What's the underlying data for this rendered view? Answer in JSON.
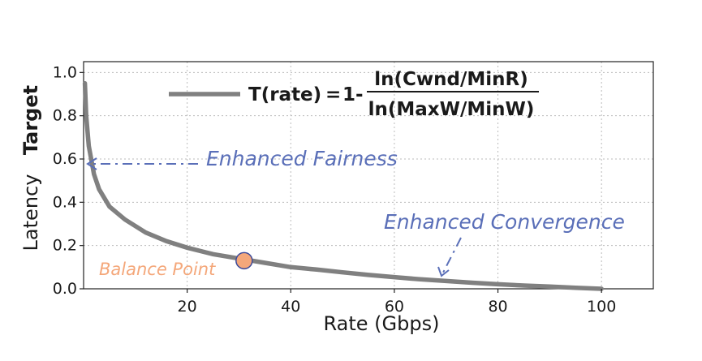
{
  "chart_data": {
    "type": "line",
    "xlabel": "Rate (Gbps)",
    "ylabel_parts": [
      "Latency",
      "Target"
    ],
    "xlim": [
      0,
      110
    ],
    "ylim": [
      0,
      1.05
    ],
    "x_ticks": [
      20,
      40,
      60,
      80,
      100
    ],
    "y_ticks": [
      0.0,
      0.2,
      0.4,
      0.6,
      0.8,
      1.0
    ],
    "x_tick_labels": [
      "20",
      "40",
      "60",
      "80",
      "100"
    ],
    "y_tick_labels": [
      "0.0",
      "0.2",
      "0.4",
      "0.6",
      "0.8",
      "1.0"
    ],
    "grid": true,
    "series": [
      {
        "color": "#808080",
        "x": [
          0.25,
          0.5,
          1,
          2,
          3,
          5,
          8,
          12,
          16,
          20,
          25,
          30,
          35,
          40,
          45,
          50,
          55,
          60,
          65,
          70,
          75,
          80,
          85,
          90,
          95,
          100
        ],
        "y": [
          0.95,
          0.8,
          0.66,
          0.53,
          0.46,
          0.38,
          0.32,
          0.26,
          0.22,
          0.19,
          0.16,
          0.14,
          0.12,
          0.1,
          0.089,
          0.076,
          0.064,
          0.054,
          0.044,
          0.036,
          0.028,
          0.021,
          0.015,
          0.01,
          0.005,
          0.0
        ]
      }
    ],
    "legend": {
      "lhs": "T(rate)",
      "equals": "=",
      "one_minus": "1-",
      "numerator": "ln(Cwnd/MinR)",
      "denominator": "ln(MaxW/MinW)"
    },
    "annotations": [
      {
        "text": "Enhanced Fairness",
        "color": "#5a6fb8"
      },
      {
        "text": "Enhanced Convergence",
        "color": "#5a6fb8"
      },
      {
        "text": "Balance Point",
        "color": "#f4a77a"
      }
    ],
    "balance_point": {
      "x": 31,
      "y": 0.13,
      "fill": "#f4a77a",
      "stroke": "#3b4a9a"
    }
  }
}
